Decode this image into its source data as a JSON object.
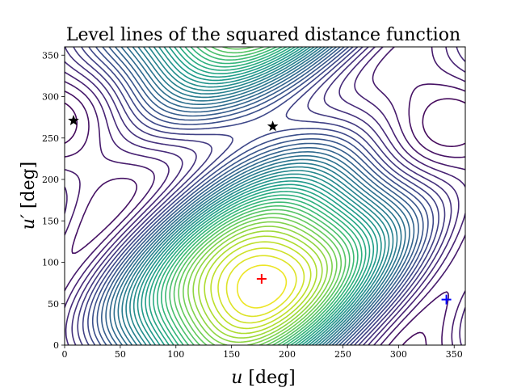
{
  "chart_data": {
    "type": "contour",
    "title": "Level lines of the squared distance function",
    "xlabel_var": "u",
    "xlabel_unit": "[deg]",
    "ylabel_var": "u′",
    "ylabel_unit": "[deg]",
    "xlim": [
      0,
      360
    ],
    "ylim": [
      0,
      360
    ],
    "xticks": [
      0,
      50,
      100,
      150,
      200,
      250,
      300,
      350
    ],
    "yticks": [
      0,
      50,
      100,
      150,
      200,
      250,
      300,
      350
    ],
    "grid": false,
    "colormap": "viridis",
    "minimum": {
      "x": 177,
      "y": 80,
      "marker": "plus",
      "color": "#ff0000"
    },
    "other_point": {
      "x": 343,
      "y": 55,
      "marker": "plus",
      "color": "#0000ff"
    },
    "saddle_points": [
      {
        "x": 8,
        "y": 271,
        "marker": "star",
        "color": "#000000"
      },
      {
        "x": 187,
        "y": 264,
        "marker": "star",
        "color": "#000000"
      }
    ]
  }
}
